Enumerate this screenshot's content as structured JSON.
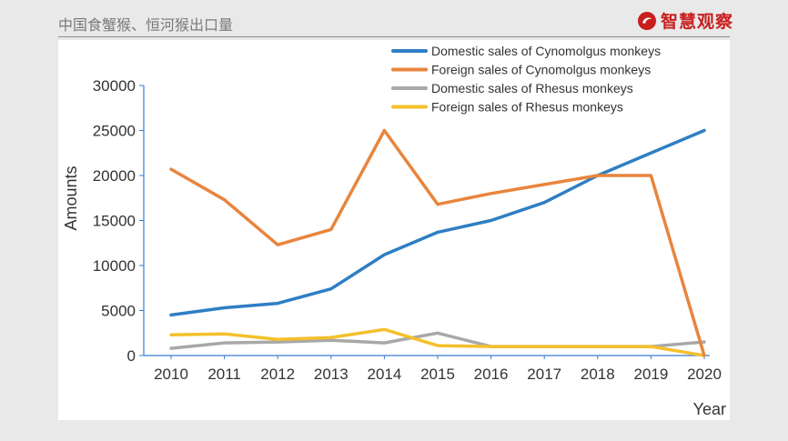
{
  "header": {
    "title": "中国食蟹猴、恒河猴出口量",
    "brand": "智慧观察",
    "brand_color": "#c81e1e"
  },
  "chart_data": {
    "type": "line",
    "title": "",
    "xlabel": "Year",
    "ylabel": "Amounts",
    "x": [
      2010,
      2011,
      2012,
      2013,
      2014,
      2015,
      2016,
      2017,
      2018,
      2019,
      2020
    ],
    "ylim": [
      0,
      30000
    ],
    "yticks": [
      0,
      5000,
      10000,
      15000,
      20000,
      25000,
      30000
    ],
    "grid": false,
    "legend_position": "top-right",
    "series": [
      {
        "name": "Domestic sales of Cynomolgus monkeys",
        "color": "#2f7ec4",
        "values": [
          4500,
          5300,
          5800,
          7400,
          11200,
          13700,
          15000,
          17000,
          20000,
          22500,
          25000
        ]
      },
      {
        "name": "Foreign sales of Cynomolgus monkeys",
        "color": "#e8853d",
        "values": [
          20700,
          17300,
          12300,
          14000,
          25000,
          16800,
          18000,
          19000,
          20000,
          20000,
          0
        ]
      },
      {
        "name": "Domestic sales of Rhesus monkeys",
        "color": "#a8a8a8",
        "values": [
          800,
          1400,
          1500,
          1700,
          1400,
          2500,
          1000,
          1000,
          1000,
          1000,
          1500
        ]
      },
      {
        "name": "Foreign sales of Rhesus monkeys",
        "color": "#f4c02b",
        "values": [
          2300,
          2400,
          1800,
          2000,
          2900,
          1100,
          1000,
          1000,
          1000,
          1000,
          0
        ]
      }
    ]
  }
}
